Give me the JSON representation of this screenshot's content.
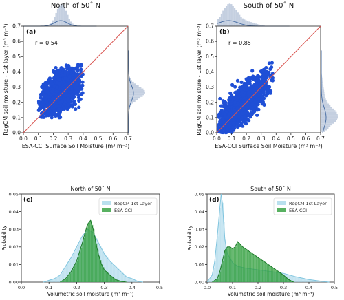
{
  "chart_data": [
    {
      "type": "scatter",
      "panel": "(a)",
      "title": "North of 50˚ N",
      "xlabel": "ESA-CCI Surface Soil Moisture (m³ m⁻³)",
      "ylabel": "RegCM soil moisture - 1st layer (m³ m⁻³)",
      "xlim": [
        0.0,
        0.7
      ],
      "ylim": [
        0.0,
        0.7
      ],
      "ticks": [
        "0.0",
        "0.1",
        "0.2",
        "0.3",
        "0.4",
        "0.5",
        "0.6",
        "0.7"
      ],
      "annotation": "r = 0.54",
      "cloud": {
        "x_center": 0.25,
        "y_center": 0.27,
        "x_spread": 0.075,
        "y_spread": 0.085,
        "x_range": [
          0.1,
          0.4
        ],
        "y_range": [
          0.1,
          0.45
        ]
      },
      "marginal_top_peak_x": 0.25,
      "marginal_right_peak_y": 0.26,
      "grid": false,
      "one_to_one_line": true,
      "color": "#1f4fd6",
      "line_color": "#d9534f"
    },
    {
      "type": "scatter",
      "panel": "(b)",
      "title": "South of 50˚ N",
      "xlabel": "ESA-CCI Surface Soil Moisture (m³ m⁻³)",
      "ylabel": "RegCM soil moisture - 1st layer (m³ m⁻³)",
      "xlim": [
        0.0,
        0.7
      ],
      "ylim": [
        0.0,
        0.7
      ],
      "ticks": [
        "0.0",
        "0.1",
        "0.2",
        "0.3",
        "0.4",
        "0.5",
        "0.6",
        "0.7"
      ],
      "annotation": "r = 0.85",
      "cloud": {
        "x_center": 0.17,
        "y_center": 0.18,
        "x_spread": 0.11,
        "y_spread": 0.12,
        "x_range": [
          0.01,
          0.38
        ],
        "y_range": [
          0.0,
          0.46
        ]
      },
      "marginal_top_peak_x": 0.08,
      "marginal_right_peak_y": 0.1,
      "grid": false,
      "one_to_one_line": true,
      "color": "#1f4fd6",
      "line_color": "#d9534f"
    },
    {
      "type": "area",
      "panel": "(c)",
      "title": "North of 50˚ N",
      "xlabel": "Volumetric soil moisture (m³ m⁻³)",
      "ylabel": "Probability",
      "xlim": [
        0.0,
        0.5
      ],
      "ylim": [
        0.0,
        0.05
      ],
      "xticks": [
        "0.0",
        "0.1",
        "0.2",
        "0.3",
        "0.4",
        "0.5"
      ],
      "yticks": [
        "0.00",
        "0.01",
        "0.02",
        "0.03",
        "0.04",
        "0.05"
      ],
      "legend": {
        "placement": "top-right",
        "entries": [
          "RegCM 1st Layer",
          "ESA-CCI"
        ]
      },
      "series": [
        {
          "name": "RegCM 1st Layer",
          "color": "#a8d8ea",
          "x": [
            0.08,
            0.1,
            0.12,
            0.14,
            0.16,
            0.18,
            0.2,
            0.22,
            0.24,
            0.26,
            0.28,
            0.3,
            0.32,
            0.34,
            0.36,
            0.38,
            0.4,
            0.42,
            0.44
          ],
          "values": [
            0.0,
            0.001,
            0.002,
            0.004,
            0.009,
            0.014,
            0.02,
            0.026,
            0.03,
            0.028,
            0.022,
            0.016,
            0.012,
            0.009,
            0.006,
            0.003,
            0.002,
            0.0005,
            0.0
          ]
        },
        {
          "name": "ESA-CCI",
          "color": "#2e9e3a",
          "x": [
            0.14,
            0.16,
            0.18,
            0.2,
            0.21,
            0.22,
            0.23,
            0.24,
            0.25,
            0.26,
            0.27,
            0.28,
            0.29,
            0.3,
            0.32,
            0.34,
            0.36,
            0.38
          ],
          "values": [
            0.0,
            0.002,
            0.006,
            0.012,
            0.017,
            0.022,
            0.028,
            0.033,
            0.035,
            0.03,
            0.022,
            0.015,
            0.01,
            0.007,
            0.004,
            0.0015,
            0.0005,
            0.0
          ]
        }
      ]
    },
    {
      "type": "area",
      "panel": "(d)",
      "title": "South of 50˚ N",
      "xlabel": "Volumetric soil moisture (m³ m⁻³)",
      "ylabel": "Probability",
      "xlim": [
        0.0,
        0.5
      ],
      "ylim": [
        0.0,
        0.05
      ],
      "xticks": [
        "0.0",
        "0.1",
        "0.2",
        "0.3",
        "0.4",
        "0.5"
      ],
      "yticks": [
        "0.00",
        "0.01",
        "0.02",
        "0.03",
        "0.04",
        "0.05"
      ],
      "legend": {
        "placement": "top-right",
        "entries": [
          "RegCM 1st Layer",
          "ESA-CCI"
        ]
      },
      "series": [
        {
          "name": "RegCM 1st Layer",
          "color": "#a8d8ea",
          "x": [
            0.0,
            0.02,
            0.03,
            0.04,
            0.05,
            0.055,
            0.06,
            0.065,
            0.07,
            0.08,
            0.1,
            0.12,
            0.15,
            0.2,
            0.25,
            0.3,
            0.35,
            0.4,
            0.45,
            0.48
          ],
          "values": [
            0.0,
            0.004,
            0.012,
            0.026,
            0.042,
            0.05,
            0.045,
            0.034,
            0.024,
            0.016,
            0.011,
            0.009,
            0.008,
            0.007,
            0.006,
            0.005,
            0.003,
            0.0015,
            0.0005,
            0.0
          ]
        },
        {
          "name": "ESA-CCI",
          "color": "#2e9e3a",
          "x": [
            0.02,
            0.04,
            0.05,
            0.06,
            0.07,
            0.08,
            0.09,
            0.1,
            0.11,
            0.12,
            0.14,
            0.16,
            0.18,
            0.2,
            0.22,
            0.24,
            0.26,
            0.28,
            0.3,
            0.32,
            0.34
          ],
          "values": [
            0.0,
            0.002,
            0.006,
            0.012,
            0.018,
            0.02,
            0.02,
            0.019,
            0.02,
            0.023,
            0.02,
            0.018,
            0.016,
            0.014,
            0.012,
            0.01,
            0.008,
            0.006,
            0.004,
            0.0015,
            0.0
          ]
        }
      ]
    }
  ]
}
